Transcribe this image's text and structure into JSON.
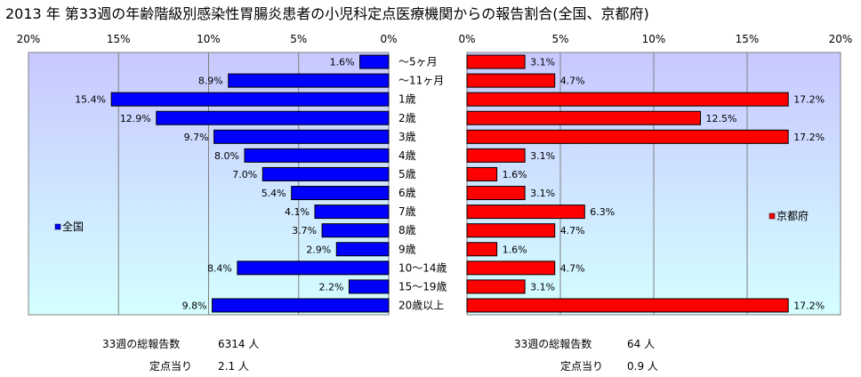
{
  "title": "2013 年 第33週の年齢階級別感染性胃腸炎患者の小児科定点医療機関からの報告割合(全国、京都府)",
  "colors": {
    "national": "#0000ff",
    "kyoto": "#ff0000",
    "plot_bg_top": "#c8c8ff",
    "plot_bg_bottom": "#d4ffff"
  },
  "chart_data": [
    {
      "type": "bar",
      "orientation": "horizontal",
      "direction": "right-to-left",
      "categories": [
        "～5ヶ月",
        "～11ヶ月",
        "1歳",
        "2歳",
        "3歳",
        "4歳",
        "5歳",
        "6歳",
        "7歳",
        "8歳",
        "9歳",
        "10～14歳",
        "15～19歳",
        "20歳以上"
      ],
      "series": [
        {
          "name": "全国",
          "values": [
            1.6,
            8.9,
            15.4,
            12.9,
            9.7,
            8.0,
            7.0,
            5.4,
            4.1,
            3.7,
            2.9,
            8.4,
            2.2,
            9.8
          ],
          "labels": [
            "1.6%",
            "8.9%",
            "15.4%",
            "12.9%",
            "9.7%",
            "8.0%",
            "7.0%",
            "5.4%",
            "4.1%",
            "3.7%",
            "2.9%",
            "8.4%",
            "2.2%",
            "9.8%"
          ]
        }
      ],
      "xlim": [
        0,
        20
      ],
      "ticks": [
        "20%",
        "15%",
        "10%",
        "5%",
        "0%"
      ],
      "grid": true,
      "legend": "left"
    },
    {
      "type": "bar",
      "orientation": "horizontal",
      "direction": "left-to-right",
      "categories": [
        "～5ヶ月",
        "～11ヶ月",
        "1歳",
        "2歳",
        "3歳",
        "4歳",
        "5歳",
        "6歳",
        "7歳",
        "8歳",
        "9歳",
        "10～14歳",
        "15～19歳",
        "20歳以上"
      ],
      "series": [
        {
          "name": "京都府",
          "values": [
            3.1,
            4.7,
            17.2,
            12.5,
            17.2,
            3.1,
            1.6,
            3.1,
            6.3,
            4.7,
            1.6,
            4.7,
            3.1,
            17.2
          ],
          "labels": [
            "3.1%",
            "4.7%",
            "17.2%",
            "12.5%",
            "17.2%",
            "3.1%",
            "1.6%",
            "3.1%",
            "6.3%",
            "4.7%",
            "1.6%",
            "4.7%",
            "3.1%",
            "17.2%"
          ]
        }
      ],
      "xlim": [
        0,
        20
      ],
      "ticks": [
        "0%",
        "5%",
        "10%",
        "15%",
        "20%"
      ],
      "grid": true,
      "legend": "right"
    }
  ],
  "footer": {
    "national": {
      "total_label": "33週の総報告数",
      "total_value": "6314 人",
      "per_label": "定点当り",
      "per_value": "2.1 人"
    },
    "kyoto": {
      "total_label": "33週の総報告数",
      "total_value": "64 人",
      "per_label": "定点当り",
      "per_value": "0.9 人"
    }
  }
}
